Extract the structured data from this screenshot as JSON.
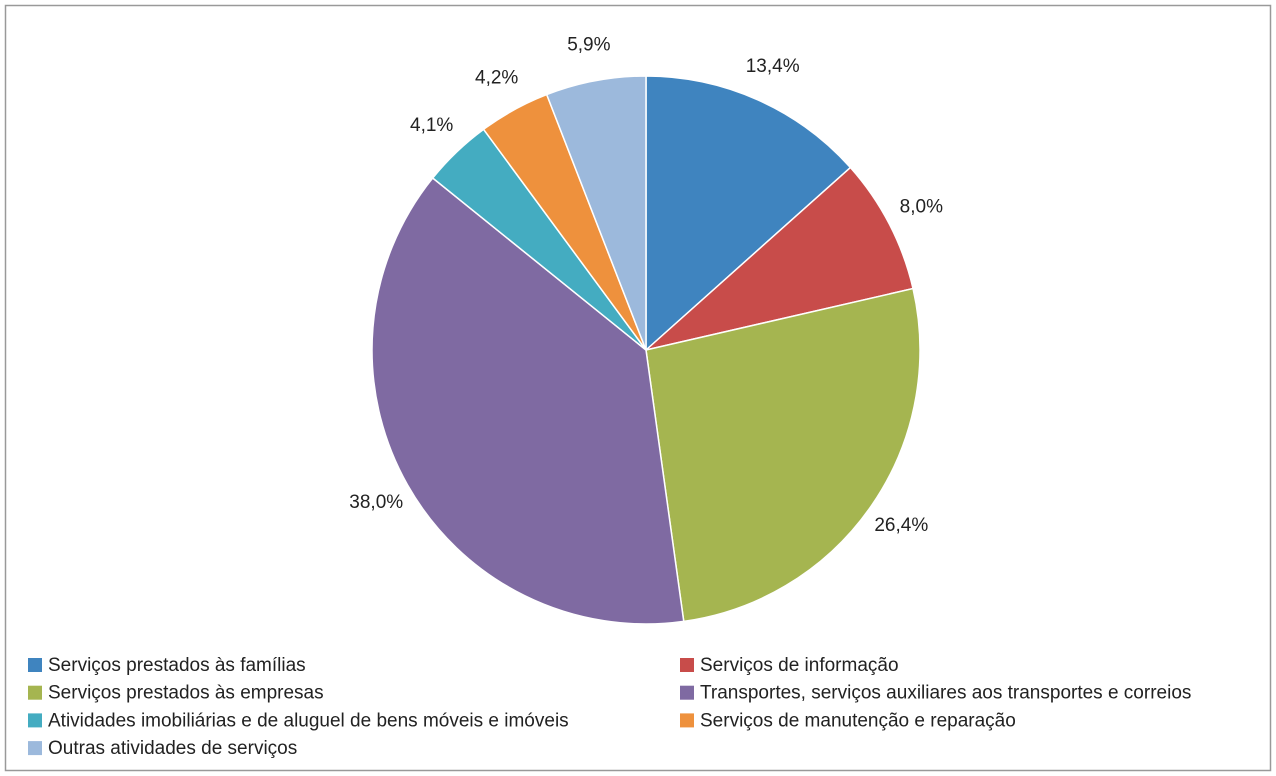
{
  "chart_data": {
    "type": "pie",
    "categories": [
      "Serviços prestados às famílias",
      "Serviços de informação",
      "Serviços prestados às empresas",
      "Transportes, serviços auxiliares aos transportes e correios",
      "Atividades imobiliárias e de aluguel de bens móveis e imóveis",
      "Serviços de manutenção e reparação",
      "Outras atividades de serviços"
    ],
    "values": [
      13.4,
      8.0,
      26.4,
      38.0,
      4.1,
      4.2,
      5.9
    ],
    "value_labels": [
      "13,4%",
      "8,0%",
      "26,4%",
      "38,0%",
      "4,1%",
      "4,2%",
      "5,9%"
    ],
    "colors": [
      "#3f84bf",
      "#c84c4a",
      "#a5b550",
      "#7f6aa2",
      "#44acc1",
      "#ee913d",
      "#9cb9dc"
    ],
    "legend": "bottom"
  }
}
